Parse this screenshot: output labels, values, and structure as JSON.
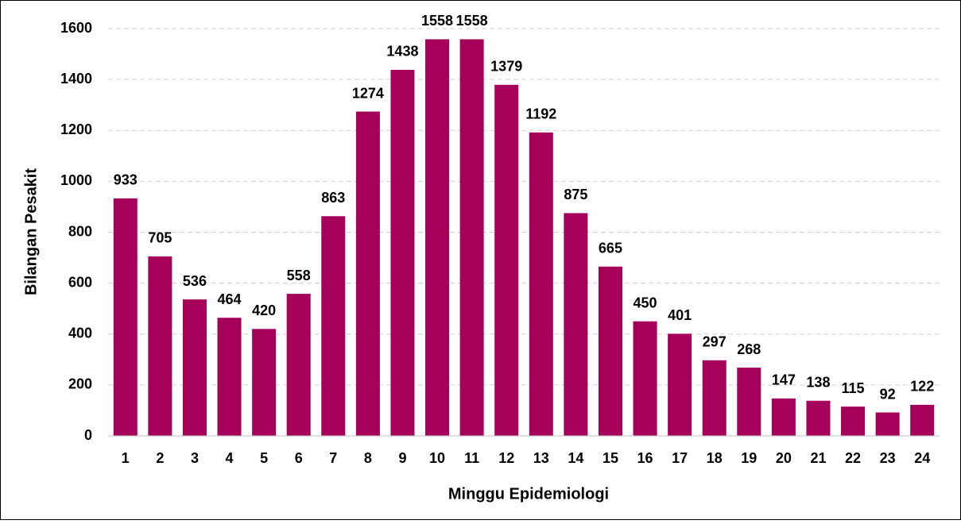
{
  "chart_data": {
    "type": "bar",
    "xlabel": "Minggu Epidemiologi",
    "ylabel": "Bilangan Pesakit",
    "categories": [
      "1",
      "2",
      "3",
      "4",
      "5",
      "6",
      "7",
      "8",
      "9",
      "10",
      "11",
      "12",
      "13",
      "14",
      "15",
      "16",
      "17",
      "18",
      "19",
      "20",
      "21",
      "22",
      "23",
      "24"
    ],
    "values": [
      933,
      705,
      536,
      464,
      420,
      558,
      863,
      1274,
      1438,
      1558,
      1558,
      1379,
      1192,
      875,
      665,
      450,
      401,
      297,
      268,
      147,
      138,
      115,
      92,
      122
    ],
    "color": "#a5005a",
    "ylim": [
      0,
      1600
    ],
    "yticks": [
      0,
      200,
      400,
      600,
      800,
      1000,
      1200,
      1400,
      1600
    ],
    "grid": true
  }
}
